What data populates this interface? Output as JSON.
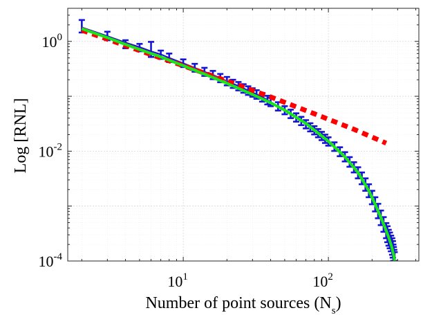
{
  "chart_data": {
    "type": "line",
    "xscale": "log",
    "yscale": "log",
    "xlim": [
      1.6,
      420
    ],
    "ylim": [
      0.0001,
      4.0
    ],
    "grid": true,
    "xlabel": "Number of point sources (N_s)",
    "xlabel_main": "Number of point sources (N",
    "xlabel_sub": "s",
    "xlabel_close": ")",
    "ylabel": "Log [RNL]",
    "x_ticks": [
      {
        "base": "10",
        "exp": "1",
        "value": 10
      },
      {
        "base": "10",
        "exp": "2",
        "value": 100
      }
    ],
    "y_ticks": [
      {
        "base": "10",
        "exp": "-4",
        "value": 0.0001
      },
      {
        "base": "10",
        "exp": "-2",
        "value": 0.01
      },
      {
        "base": "10",
        "exp": "0",
        "value": 1
      }
    ],
    "series": [
      {
        "style": "errorbar",
        "color": "#1414d6",
        "x": [
          2,
          3,
          4,
          5,
          6,
          7,
          8,
          10,
          12,
          14,
          16,
          18,
          20,
          22,
          24,
          26,
          28,
          30,
          32,
          35,
          38,
          40,
          45,
          50,
          55,
          60,
          65,
          70,
          75,
          80,
          85,
          90,
          95,
          100,
          110,
          120,
          130,
          140,
          150,
          160,
          170,
          180,
          190,
          200,
          210,
          220,
          230,
          240,
          250,
          255,
          260,
          265,
          270,
          275,
          278,
          280,
          282,
          284,
          286
        ],
        "values": [
          1.8,
          1.25,
          0.95,
          0.79,
          0.66,
          0.58,
          0.5,
          0.4,
          0.33,
          0.28,
          0.245,
          0.215,
          0.19,
          0.17,
          0.154,
          0.14,
          0.128,
          0.118,
          0.109,
          0.097,
          0.086,
          0.079,
          0.066,
          0.056,
          0.048,
          0.041,
          0.0355,
          0.031,
          0.0272,
          0.024,
          0.0213,
          0.0189,
          0.0168,
          0.015,
          0.0121,
          0.0098,
          0.0079,
          0.0064,
          0.0051,
          0.0041,
          0.0032,
          0.0025,
          0.00192,
          0.00145,
          0.00108,
          0.00082,
          0.00062,
          0.00047,
          0.00036,
          0.00031,
          0.00027,
          0.00024,
          0.00021,
          0.000185,
          0.00016,
          0.00014,
          0.000125,
          0.000112,
          0.0001
        ],
        "lower": [
          1.45,
          1.05,
          0.75,
          0.66,
          0.52,
          0.48,
          0.42,
          0.34,
          0.28,
          0.235,
          0.205,
          0.18,
          0.158,
          0.142,
          0.128,
          0.116,
          0.106,
          0.098,
          0.09,
          0.08,
          0.071,
          0.066,
          0.055,
          0.047,
          0.04,
          0.0345,
          0.0298,
          0.026,
          0.0229,
          0.0202,
          0.0179,
          0.0159,
          0.0141,
          0.0126,
          0.0101,
          0.0081,
          0.0065,
          0.0052,
          0.0041,
          0.0032,
          0.0025,
          0.0019,
          0.00145,
          0.00108,
          0.0008,
          0.0006,
          0.00045,
          0.00034,
          0.00026,
          0.00022,
          0.00019,
          0.00017,
          0.00015,
          0.00013,
          0.000115,
          0.0001,
          0.0001,
          0.0001,
          0.0001
        ],
        "upper": [
          2.45,
          1.5,
          1.05,
          0.9,
          0.98,
          0.68,
          0.6,
          0.47,
          0.39,
          0.33,
          0.29,
          0.255,
          0.225,
          0.2,
          0.182,
          0.166,
          0.152,
          0.14,
          0.129,
          0.115,
          0.102,
          0.094,
          0.078,
          0.066,
          0.057,
          0.049,
          0.0422,
          0.0368,
          0.0323,
          0.0285,
          0.0253,
          0.0225,
          0.02,
          0.0179,
          0.0145,
          0.0118,
          0.0096,
          0.0078,
          0.0063,
          0.0051,
          0.0041,
          0.0032,
          0.0025,
          0.0019,
          0.00145,
          0.0011,
          0.00083,
          0.00063,
          0.00049,
          0.00043,
          0.00037,
          0.00033,
          0.00029,
          0.00026,
          0.00023,
          0.0002,
          0.00018,
          0.00016,
          0.000145
        ]
      },
      {
        "style": "solid",
        "color": "#e0202a",
        "x": [
          2,
          3,
          5,
          8,
          12,
          20
        ],
        "values": [
          1.78,
          1.2,
          0.74,
          0.47,
          0.32,
          0.19
        ]
      },
      {
        "style": "dotted",
        "color": "#ff0000",
        "x": [
          2,
          5,
          10,
          20,
          40,
          80,
          150,
          250
        ],
        "values": [
          1.6,
          0.68,
          0.36,
          0.19,
          0.097,
          0.048,
          0.025,
          0.014
        ]
      },
      {
        "style": "solid",
        "color": "#19e619",
        "x": [
          2,
          3,
          4,
          5,
          7,
          10,
          15,
          20,
          30,
          40,
          50,
          70,
          100,
          130,
          160,
          190,
          210,
          230,
          250,
          260,
          270,
          275,
          280,
          283,
          286
        ],
        "values": [
          1.7,
          1.17,
          0.88,
          0.71,
          0.52,
          0.36,
          0.235,
          0.172,
          0.108,
          0.076,
          0.056,
          0.032,
          0.0152,
          0.0079,
          0.0041,
          0.0019,
          0.00108,
          0.00062,
          0.00036,
          0.00027,
          0.0002,
          0.000168,
          0.000138,
          0.00012,
          0.0001
        ]
      }
    ]
  }
}
